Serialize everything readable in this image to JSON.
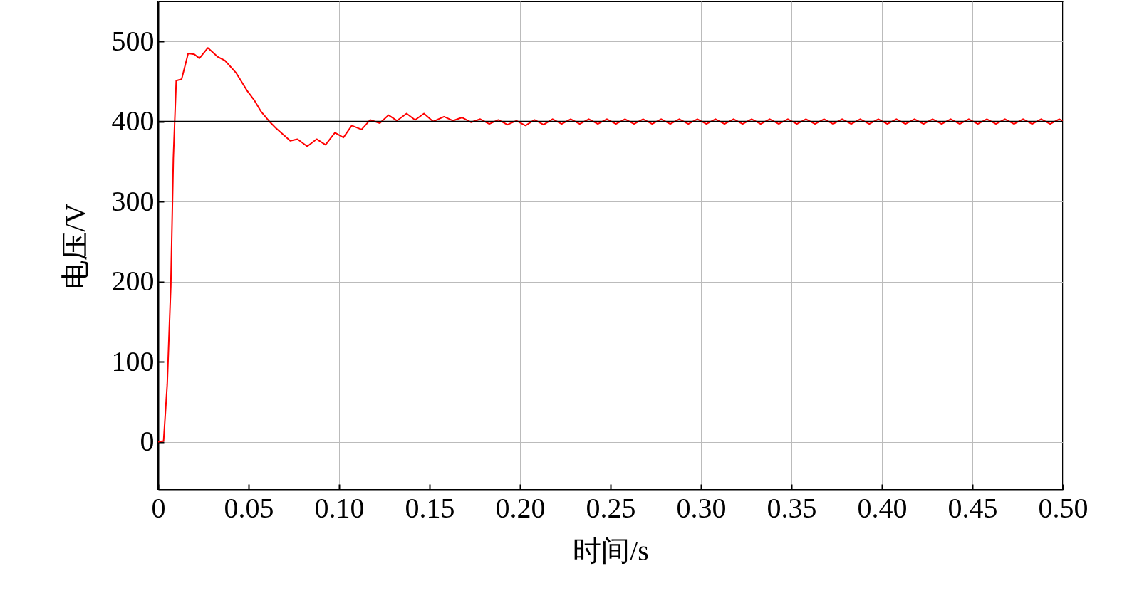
{
  "chart_data": {
    "type": "line",
    "xlabel": "时间/s",
    "ylabel": "电压/V",
    "xlim": [
      0,
      0.5
    ],
    "ylim": [
      -60,
      550
    ],
    "xticks": [
      0,
      0.05,
      {
        "value": 0.1,
        "label": "0.10"
      },
      0.15,
      {
        "value": 0.2,
        "label": "0.20"
      },
      0.25,
      {
        "value": 0.3,
        "label": "0.30"
      },
      0.35,
      {
        "value": 0.4,
        "label": "0.40"
      },
      0.45,
      {
        "value": 0.5,
        "label": "0.50"
      }
    ],
    "yticks": [
      0,
      100,
      200,
      300,
      400,
      500
    ],
    "grid": true,
    "ref_lines": [
      {
        "axis": "y",
        "value": 400,
        "color": "#000000"
      }
    ],
    "x": [
      0,
      0.003,
      0.005,
      0.007,
      0.0084,
      0.01,
      0.013,
      0.0166,
      0.02,
      0.0228,
      0.0275,
      0.0328,
      0.037,
      0.043,
      0.049,
      0.053,
      0.057,
      0.0615,
      0.065,
      0.073,
      0.077,
      0.0824,
      0.0876,
      0.0925,
      0.0977,
      0.1024,
      0.107,
      0.1124,
      0.1172,
      0.1225,
      0.1273,
      0.132,
      0.1373,
      0.142,
      0.1469,
      0.152,
      0.158,
      0.163,
      0.168,
      0.173,
      0.178,
      0.183,
      0.188,
      0.193,
      0.198,
      0.203,
      0.208,
      0.213,
      0.218,
      0.223,
      0.228,
      0.233,
      0.238,
      0.243,
      0.248,
      0.253,
      0.258,
      0.263,
      0.268,
      0.273,
      0.278,
      0.283,
      0.288,
      0.293,
      0.298,
      0.303,
      0.308,
      0.313,
      0.318,
      0.323,
      0.328,
      0.333,
      0.338,
      0.343,
      0.348,
      0.353,
      0.358,
      0.363,
      0.368,
      0.373,
      0.378,
      0.383,
      0.388,
      0.393,
      0.398,
      0.403,
      0.408,
      0.413,
      0.418,
      0.423,
      0.428,
      0.433,
      0.438,
      0.443,
      0.448,
      0.453,
      0.458,
      0.463,
      0.468,
      0.473,
      0.478,
      0.483,
      0.488,
      0.493,
      0.498,
      0.5
    ],
    "series": [
      {
        "color": "#ff0000",
        "values": [
          0,
          1,
          71,
          194,
          354,
          451,
          453,
          485,
          484,
          479,
          492,
          481,
          476,
          461,
          439,
          427,
          412,
          400,
          392,
          376,
          378,
          369,
          378,
          371,
          386,
          380,
          395,
          390,
          402,
          398,
          408,
          401,
          410,
          402,
          410,
          400,
          406,
          401,
          405,
          399,
          403,
          397,
          402,
          396,
          401,
          395,
          402,
          396,
          403,
          397,
          403,
          397,
          403,
          397,
          403,
          397,
          403,
          397,
          403,
          397,
          403,
          397,
          403,
          397,
          403,
          397,
          403,
          397,
          403,
          397,
          403,
          397,
          403,
          397,
          403,
          397,
          403,
          397,
          403,
          397,
          403,
          397,
          403,
          397,
          403,
          397,
          403,
          397,
          403,
          397,
          403,
          397,
          403,
          397,
          403,
          397,
          403,
          397,
          403,
          397,
          403,
          397,
          403,
          397,
          403,
          401
        ]
      }
    ]
  }
}
